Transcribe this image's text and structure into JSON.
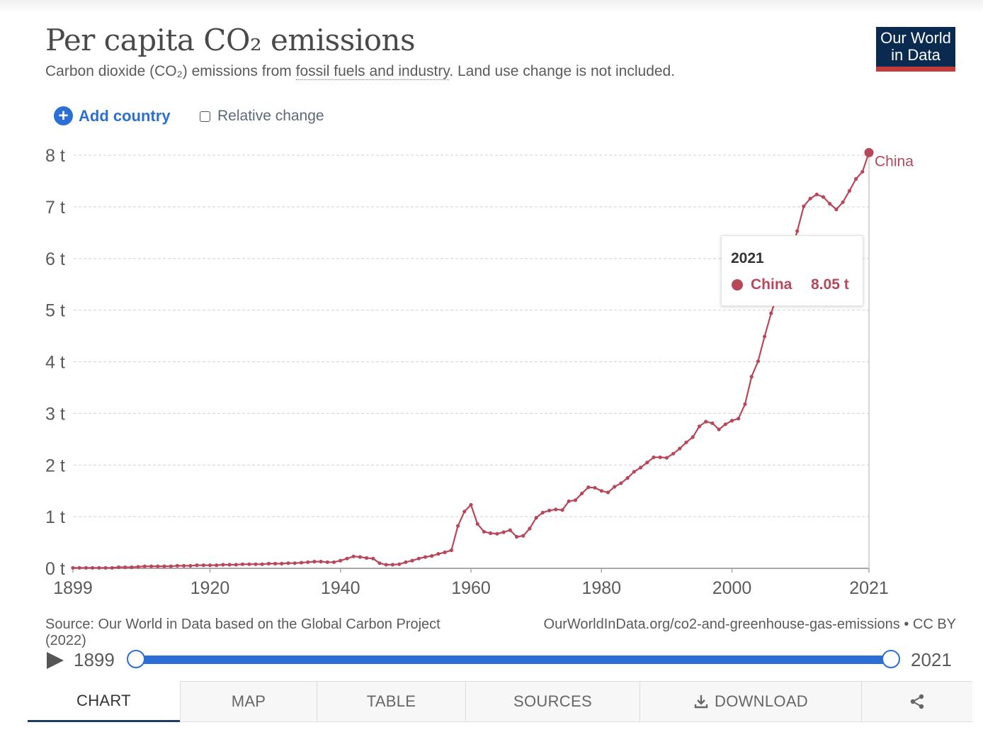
{
  "header": {
    "title": "Per capita CO₂ emissions",
    "subtitle_pre": "Carbon dioxide (CO₂) emissions from ",
    "subtitle_link": "fossil fuels and industry",
    "subtitle_post": ". Land use change is not included.",
    "logo_line1": "Our World",
    "logo_line2": "in Data"
  },
  "controls": {
    "add_country_label": "Add country",
    "relative_change_label": "Relative change",
    "relative_change_checked": false
  },
  "tooltip": {
    "year": "2021",
    "entity": "China",
    "value": "8.05 t"
  },
  "chart_data": {
    "type": "line",
    "title": "Per capita CO₂ emissions",
    "xlabel": "",
    "ylabel": "",
    "xlim": [
      1899,
      2021
    ],
    "ylim": [
      0,
      8
    ],
    "x_ticks": [
      1899,
      1920,
      1940,
      1960,
      1980,
      2000,
      2021
    ],
    "y_ticks": [
      "0 t",
      "1 t",
      "2 t",
      "3 t",
      "4 t",
      "5 t",
      "6 t",
      "7 t",
      "8 t"
    ],
    "grid": "horizontal dashed",
    "legend": "end-of-line label",
    "series": [
      {
        "name": "China",
        "color": "#b8475a",
        "points": [
          [
            1899,
            0.01
          ],
          [
            1900,
            0.01
          ],
          [
            1901,
            0.01
          ],
          [
            1902,
            0.01
          ],
          [
            1903,
            0.01
          ],
          [
            1904,
            0.01
          ],
          [
            1905,
            0.01
          ],
          [
            1906,
            0.02
          ],
          [
            1907,
            0.02
          ],
          [
            1908,
            0.02
          ],
          [
            1909,
            0.03
          ],
          [
            1910,
            0.04
          ],
          [
            1911,
            0.04
          ],
          [
            1912,
            0.04
          ],
          [
            1913,
            0.04
          ],
          [
            1914,
            0.04
          ],
          [
            1915,
            0.05
          ],
          [
            1916,
            0.05
          ],
          [
            1917,
            0.05
          ],
          [
            1918,
            0.06
          ],
          [
            1919,
            0.06
          ],
          [
            1920,
            0.06
          ],
          [
            1921,
            0.06
          ],
          [
            1922,
            0.07
          ],
          [
            1923,
            0.07
          ],
          [
            1924,
            0.07
          ],
          [
            1925,
            0.08
          ],
          [
            1926,
            0.08
          ],
          [
            1927,
            0.08
          ],
          [
            1928,
            0.08
          ],
          [
            1929,
            0.09
          ],
          [
            1930,
            0.09
          ],
          [
            1931,
            0.09
          ],
          [
            1932,
            0.1
          ],
          [
            1933,
            0.1
          ],
          [
            1934,
            0.11
          ],
          [
            1935,
            0.12
          ],
          [
            1936,
            0.13
          ],
          [
            1937,
            0.13
          ],
          [
            1938,
            0.12
          ],
          [
            1939,
            0.12
          ],
          [
            1940,
            0.15
          ],
          [
            1941,
            0.19
          ],
          [
            1942,
            0.23
          ],
          [
            1943,
            0.22
          ],
          [
            1944,
            0.2
          ],
          [
            1945,
            0.19
          ],
          [
            1946,
            0.1
          ],
          [
            1947,
            0.07
          ],
          [
            1948,
            0.07
          ],
          [
            1949,
            0.08
          ],
          [
            1950,
            0.12
          ],
          [
            1951,
            0.15
          ],
          [
            1952,
            0.19
          ],
          [
            1953,
            0.22
          ],
          [
            1954,
            0.24
          ],
          [
            1955,
            0.28
          ],
          [
            1956,
            0.31
          ],
          [
            1957,
            0.35
          ],
          [
            1958,
            0.82
          ],
          [
            1959,
            1.1
          ],
          [
            1960,
            1.23
          ],
          [
            1961,
            0.86
          ],
          [
            1962,
            0.71
          ],
          [
            1963,
            0.68
          ],
          [
            1964,
            0.67
          ],
          [
            1965,
            0.7
          ],
          [
            1966,
            0.74
          ],
          [
            1967,
            0.61
          ],
          [
            1968,
            0.63
          ],
          [
            1969,
            0.77
          ],
          [
            1970,
            0.98
          ],
          [
            1971,
            1.08
          ],
          [
            1972,
            1.12
          ],
          [
            1973,
            1.14
          ],
          [
            1974,
            1.13
          ],
          [
            1975,
            1.3
          ],
          [
            1976,
            1.32
          ],
          [
            1977,
            1.45
          ],
          [
            1978,
            1.57
          ],
          [
            1979,
            1.56
          ],
          [
            1980,
            1.5
          ],
          [
            1981,
            1.47
          ],
          [
            1982,
            1.58
          ],
          [
            1983,
            1.65
          ],
          [
            1984,
            1.75
          ],
          [
            1985,
            1.87
          ],
          [
            1986,
            1.95
          ],
          [
            1987,
            2.05
          ],
          [
            1988,
            2.15
          ],
          [
            1989,
            2.15
          ],
          [
            1990,
            2.14
          ],
          [
            1991,
            2.22
          ],
          [
            1992,
            2.32
          ],
          [
            1993,
            2.44
          ],
          [
            1994,
            2.54
          ],
          [
            1995,
            2.75
          ],
          [
            1996,
            2.84
          ],
          [
            1997,
            2.81
          ],
          [
            1998,
            2.69
          ],
          [
            1999,
            2.79
          ],
          [
            2000,
            2.86
          ],
          [
            2001,
            2.9
          ],
          [
            2002,
            3.18
          ],
          [
            2003,
            3.71
          ],
          [
            2004,
            4.01
          ],
          [
            2005,
            4.49
          ],
          [
            2006,
            4.94
          ],
          [
            2007,
            5.31
          ],
          [
            2008,
            5.52
          ],
          [
            2009,
            6.08
          ],
          [
            2010,
            6.53
          ],
          [
            2011,
            7.01
          ],
          [
            2012,
            7.16
          ],
          [
            2013,
            7.24
          ],
          [
            2014,
            7.19
          ],
          [
            2015,
            7.06
          ],
          [
            2016,
            6.95
          ],
          [
            2017,
            7.09
          ],
          [
            2018,
            7.31
          ],
          [
            2019,
            7.54
          ],
          [
            2020,
            7.68
          ],
          [
            2021,
            8.05
          ]
        ]
      }
    ]
  },
  "footer": {
    "source_text": "Source: Our World in Data based on the Global Carbon Project (2022)",
    "url_text": "OurWorldInData.org/co2-and-greenhouse-gas-emissions • CC BY",
    "start_year": "1899",
    "end_year": "2021"
  },
  "tabs": [
    "CHART",
    "MAP",
    "TABLE",
    "SOURCES",
    "DOWNLOAD"
  ],
  "icons": {
    "add": "plus-circle-icon",
    "play": "play-icon",
    "download": "download-icon",
    "share": "share-icon"
  }
}
